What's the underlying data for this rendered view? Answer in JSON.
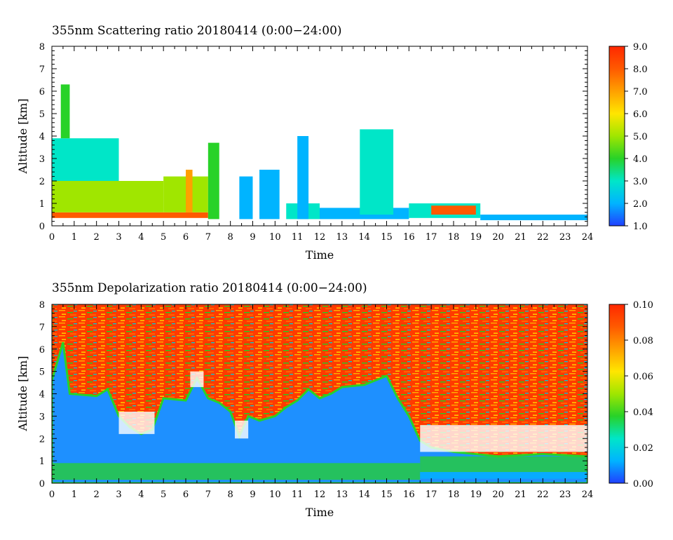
{
  "chart_data": [
    {
      "type": "heatmap",
      "title": "355nm Scattering ratio  20180414 (0:00−24:00)",
      "xlabel": "Time",
      "ylabel": "Altitude [km]",
      "xlim": [
        0,
        24
      ],
      "ylim": [
        0,
        8
      ],
      "x_ticks": [
        "0",
        "1",
        "2",
        "3",
        "4",
        "5",
        "6",
        "7",
        "8",
        "9",
        "10",
        "11",
        "12",
        "13",
        "14",
        "15",
        "16",
        "17",
        "18",
        "19",
        "20",
        "21",
        "22",
        "23",
        "24"
      ],
      "y_ticks": [
        "0",
        "1",
        "2",
        "3",
        "4",
        "5",
        "6",
        "7",
        "8"
      ],
      "colorbar": {
        "range": [
          1.0,
          9.0
        ],
        "labels": [
          "1.0",
          "2.0",
          "3.0",
          "4.0",
          "5.0",
          "6.0",
          "7.0",
          "8.0",
          "9.0"
        ],
        "colors": [
          "#2040ff",
          "#00b4ff",
          "#00e6c8",
          "#28d228",
          "#a0e600",
          "#ffe600",
          "#ffa000",
          "#ff5a00",
          "#ff2800"
        ]
      },
      "layers": [
        {
          "t0": 0,
          "t1": 7.0,
          "base": 0.35,
          "top": 0.6,
          "value": 8.0
        },
        {
          "t0": 0,
          "t1": 5.0,
          "base": 0.6,
          "top": 2.0,
          "value": 4.5
        },
        {
          "t0": 0,
          "t1": 3.0,
          "base": 2.0,
          "top": 3.9,
          "value": 3.0
        },
        {
          "t0": 0.4,
          "t1": 0.8,
          "base": 3.9,
          "top": 6.3,
          "value": 3.5
        },
        {
          "t0": 5.0,
          "t1": 7.0,
          "base": 0.6,
          "top": 2.2,
          "value": 5.0
        },
        {
          "t0": 6.0,
          "t1": 6.3,
          "base": 0.6,
          "top": 2.5,
          "value": 7.0
        },
        {
          "t0": 7.0,
          "t1": 7.5,
          "base": 0.3,
          "top": 3.7,
          "value": 3.5
        },
        {
          "t0": 8.4,
          "t1": 9.0,
          "base": 0.3,
          "top": 2.2,
          "value": 2.0
        },
        {
          "t0": 9.3,
          "t1": 10.2,
          "base": 0.3,
          "top": 2.5,
          "value": 2.2
        },
        {
          "t0": 10.5,
          "t1": 12.0,
          "base": 0.3,
          "top": 1.0,
          "value": 3.0
        },
        {
          "t0": 11.0,
          "t1": 11.5,
          "base": 0.3,
          "top": 4.0,
          "value": 2.0
        },
        {
          "t0": 12.0,
          "t1": 16.0,
          "base": 0.3,
          "top": 0.8,
          "value": 2.0
        },
        {
          "t0": 13.8,
          "t1": 15.3,
          "base": 0.5,
          "top": 4.3,
          "value": 2.5
        },
        {
          "t0": 16.0,
          "t1": 19.2,
          "base": 0.35,
          "top": 1.0,
          "value": 2.5
        },
        {
          "t0": 17.0,
          "t1": 19.0,
          "base": 0.5,
          "top": 0.9,
          "value": 8.0
        },
        {
          "t0": 19.2,
          "t1": 24.0,
          "base": 0.25,
          "top": 0.5,
          "value": 2.0
        }
      ]
    },
    {
      "type": "heatmap",
      "title": "355nm Depolarization ratio  20180414 (0:00−24:00)",
      "xlabel": "Time",
      "ylabel": "Altitude [km]",
      "xlim": [
        0,
        24
      ],
      "ylim": [
        0,
        8
      ],
      "x_ticks": [
        "0",
        "1",
        "2",
        "3",
        "4",
        "5",
        "6",
        "7",
        "8",
        "9",
        "10",
        "11",
        "12",
        "13",
        "14",
        "15",
        "16",
        "17",
        "18",
        "19",
        "20",
        "21",
        "22",
        "23",
        "24"
      ],
      "y_ticks": [
        "0",
        "1",
        "2",
        "3",
        "4",
        "5",
        "6",
        "7",
        "8"
      ],
      "colorbar": {
        "range": [
          0.0,
          0.1
        ],
        "labels": [
          "0.00",
          "0.02",
          "0.04",
          "0.06",
          "0.08",
          "0.10"
        ],
        "colors": [
          "#2040ff",
          "#00b4ff",
          "#00e6c8",
          "#28d228",
          "#a0e600",
          "#ffe600",
          "#ffa000",
          "#ff5a00",
          "#ff2800"
        ]
      },
      "boundary_top_km": [
        [
          0,
          4.6
        ],
        [
          0.5,
          6.3
        ],
        [
          0.8,
          4.0
        ],
        [
          2.0,
          3.9
        ],
        [
          2.5,
          4.2
        ],
        [
          3.0,
          3.0
        ],
        [
          3.5,
          2.5
        ],
        [
          4.0,
          2.2
        ],
        [
          4.5,
          2.4
        ],
        [
          5.0,
          3.8
        ],
        [
          6.0,
          3.7
        ],
        [
          6.5,
          4.7
        ],
        [
          7.0,
          3.8
        ],
        [
          7.5,
          3.6
        ],
        [
          8.0,
          3.2
        ],
        [
          8.4,
          2.1
        ],
        [
          8.8,
          3.0
        ],
        [
          9.3,
          2.8
        ],
        [
          10.0,
          3.0
        ],
        [
          10.5,
          3.4
        ],
        [
          11.0,
          3.7
        ],
        [
          11.5,
          4.2
        ],
        [
          12.0,
          3.8
        ],
        [
          12.5,
          4.0
        ],
        [
          13.0,
          4.3
        ],
        [
          14.0,
          4.4
        ],
        [
          15.0,
          4.8
        ],
        [
          15.5,
          3.8
        ],
        [
          16.0,
          3.0
        ],
        [
          16.5,
          1.9
        ],
        [
          17.0,
          1.6
        ],
        [
          18.0,
          1.4
        ],
        [
          19.0,
          1.3
        ],
        [
          20.0,
          1.2
        ],
        [
          22.0,
          1.3
        ],
        [
          24.0,
          1.2
        ]
      ],
      "white_patches": [
        {
          "t0": 3.0,
          "t1": 4.6,
          "base": 2.2,
          "top": 3.2
        },
        {
          "t0": 6.2,
          "t1": 6.8,
          "base": 4.3,
          "top": 5.0
        },
        {
          "t0": 8.2,
          "t1": 8.8,
          "base": 2.0,
          "top": 2.8
        },
        {
          "t0": 16.5,
          "t1": 24.0,
          "base": 1.4,
          "top": 2.6
        }
      ],
      "low_bands": [
        {
          "t0": 0,
          "t1": 16.5,
          "base": 0.15,
          "top": 0.9,
          "value": 0.035
        },
        {
          "t0": 16.5,
          "t1": 24.0,
          "base": 0.2,
          "top": 0.5,
          "value": 0.015
        },
        {
          "t0": 16.5,
          "t1": 24.0,
          "base": 0.5,
          "top": 1.2,
          "value": 0.04
        }
      ]
    }
  ]
}
